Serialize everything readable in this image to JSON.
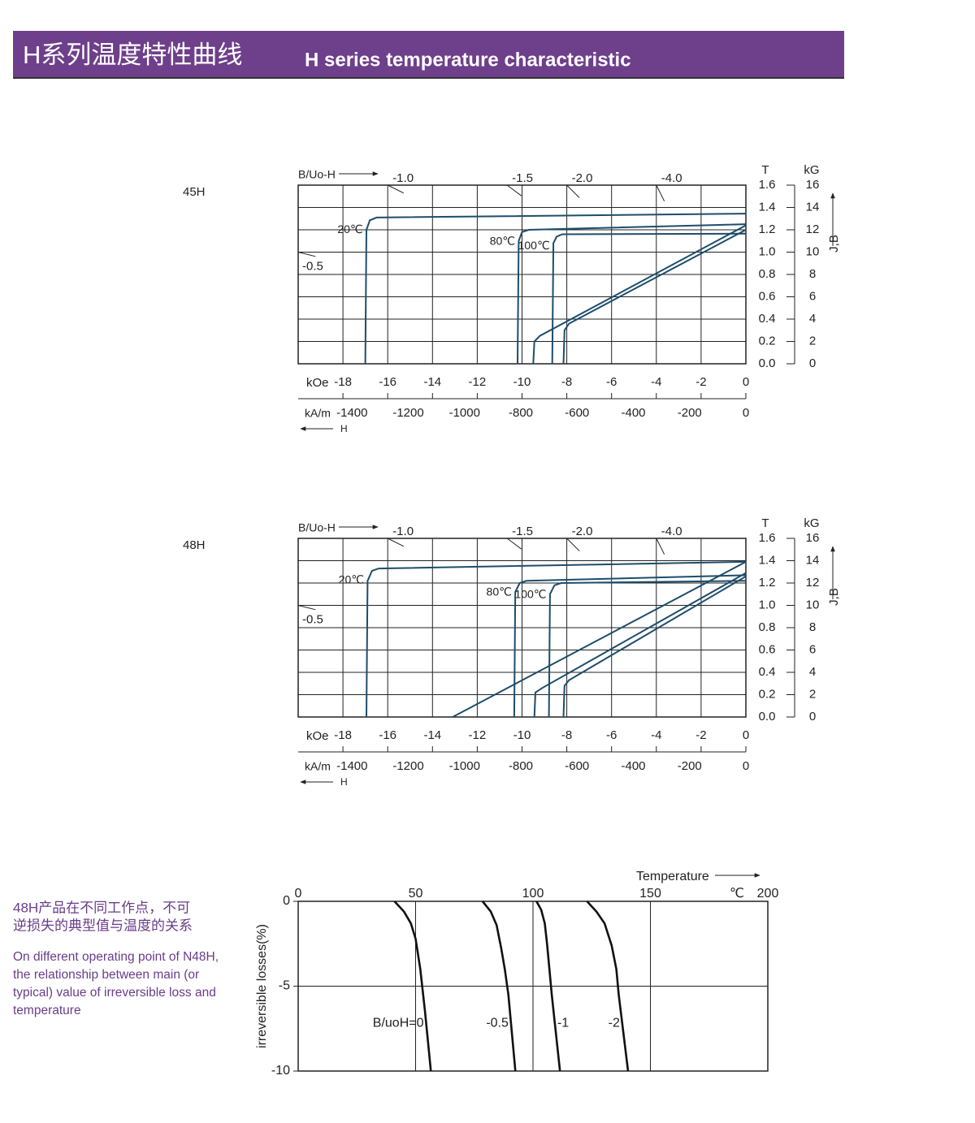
{
  "header": {
    "title_cn": "H系列温度特性曲线",
    "title_en": "H series temperature characteristic"
  },
  "side_note": {
    "cn_lines": [
      "48H产品在不同工作点，不可",
      "逆损失的典型值与温度的关系"
    ],
    "en_lines": [
      "On different operating point of N48H,",
      "the relationship between main (or",
      "typical) value of irreversible loss and",
      "temperature"
    ]
  },
  "chart_data": [
    {
      "type": "demag",
      "label": "45H",
      "top_label": "B/Uo-H",
      "xlabel": "kOe",
      "x2label": "kA/m",
      "x2_arrow_label": "H",
      "ylabel": "J,B",
      "y_unit": "T",
      "y2_unit": "kG",
      "xlim": [
        -20,
        0
      ],
      "xticks": [
        -18,
        -16,
        -14,
        -12,
        -10,
        -8,
        -6,
        -4,
        -2,
        0
      ],
      "x2lim": [
        -1591.5,
        0
      ],
      "x2ticks": [
        -1400,
        -1200,
        -1000,
        -800,
        -600,
        -400,
        -200,
        0
      ],
      "ylim": [
        0,
        1.6
      ],
      "yticks": [
        {
          "value": 0,
          "label": "0.0"
        },
        {
          "value": 0.2,
          "label": "0.2"
        },
        {
          "value": 0.4,
          "label": "0.4"
        },
        {
          "value": 0.6,
          "label": "0.6"
        },
        {
          "value": 0.8,
          "label": "0.8"
        },
        {
          "value": 1.0,
          "label": "1.0"
        },
        {
          "value": 1.2,
          "label": "1.2"
        },
        {
          "value": 1.4,
          "label": "1.4"
        },
        {
          "value": 1.6,
          "label": "1.6"
        }
      ],
      "y2lim": [
        0,
        16
      ],
      "y2ticks": [
        0,
        2,
        4,
        6,
        8,
        10,
        12,
        14,
        16
      ],
      "grid": true,
      "load_lines": [
        {
          "value": -1,
          "label": "-1.0"
        },
        {
          "value": -1.5,
          "label": "-1.5"
        },
        {
          "value": -2,
          "label": "-2.0"
        },
        {
          "value": -4,
          "label": "-4.0"
        },
        {
          "value": -0.5,
          "label": "-0.5"
        }
      ],
      "series": [
        {
          "name": "20℃",
          "color": "#1d4d6b",
          "x": [
            -17,
            -16.95,
            -16.8,
            -16.5,
            0
          ],
          "values": [
            0,
            1.2,
            1.285,
            1.31,
            1.345
          ]
        },
        {
          "name": "80℃",
          "color": "#1d4d6b",
          "x": [
            -10.2,
            -10.15,
            -10,
            -9.7,
            0
          ],
          "values": [
            0,
            1.1,
            1.18,
            1.2,
            1.25
          ]
        },
        {
          "name": "100℃",
          "color": "#1d4d6b",
          "x": [
            -8.65,
            -8.6,
            -8.45,
            -8.2,
            0
          ],
          "values": [
            0,
            1.08,
            1.14,
            1.16,
            1.165
          ]
        },
        {
          "color": "#1d4d6b",
          "x": [
            -9.5,
            -9.45,
            -9.2,
            0
          ],
          "values": [
            0,
            0.2,
            0.25,
            1.24
          ]
        },
        {
          "color": "#1d4d6b",
          "x": [
            -8.15,
            -8.1,
            -7.9,
            0
          ],
          "values": [
            0,
            0.3,
            0.36,
            1.2
          ]
        }
      ]
    },
    {
      "type": "demag",
      "label": "48H",
      "top_label": "B/Uo-H",
      "xlabel": "kOe",
      "x2label": "kA/m",
      "x2_arrow_label": "H",
      "ylabel": "J,B",
      "y_unit": "T",
      "y2_unit": "kG",
      "xlim": [
        -20,
        0
      ],
      "xticks": [
        -18,
        -16,
        -14,
        -12,
        -10,
        -8,
        -6,
        -4,
        -2,
        0
      ],
      "x2lim": [
        -1591.5,
        0
      ],
      "x2ticks": [
        -1400,
        -1200,
        -1000,
        -800,
        -600,
        -400,
        -200,
        0
      ],
      "ylim": [
        0,
        1.6
      ],
      "yticks": [
        {
          "value": 0,
          "label": "0.0"
        },
        {
          "value": 0.2,
          "label": "0.2"
        },
        {
          "value": 0.4,
          "label": "0.4"
        },
        {
          "value": 0.6,
          "label": "0.6"
        },
        {
          "value": 0.8,
          "label": "0.8"
        },
        {
          "value": 1.0,
          "label": "1.0"
        },
        {
          "value": 1.2,
          "label": "1.2"
        },
        {
          "value": 1.4,
          "label": "1.4"
        },
        {
          "value": 1.6,
          "label": "1.6"
        }
      ],
      "y2lim": [
        0,
        16
      ],
      "y2ticks": [
        0,
        2,
        4,
        6,
        8,
        10,
        12,
        14,
        16
      ],
      "grid": true,
      "load_lines": [
        {
          "value": -1,
          "label": "-1.0"
        },
        {
          "value": -1.5,
          "label": "-1.5"
        },
        {
          "value": -2,
          "label": "-2.0"
        },
        {
          "value": -4,
          "label": "-4.0"
        },
        {
          "value": -0.5,
          "label": "-0.5"
        }
      ],
      "series": [
        {
          "name": "20℃",
          "color": "#1d4d6b",
          "x": [
            -16.95,
            -16.9,
            -16.7,
            -16.4,
            0
          ],
          "values": [
            0,
            1.22,
            1.31,
            1.33,
            1.39
          ]
        },
        {
          "name": "80℃",
          "color": "#1d4d6b",
          "x": [
            -10.35,
            -10.3,
            -10.1,
            -9.8,
            0
          ],
          "values": [
            0,
            1.12,
            1.2,
            1.22,
            1.27
          ]
        },
        {
          "name": "100℃",
          "color": "#1d4d6b",
          "x": [
            -8.8,
            -8.75,
            -8.55,
            -8.25,
            0
          ],
          "values": [
            0,
            1.1,
            1.18,
            1.2,
            1.22
          ]
        },
        {
          "color": "#1d4d6b",
          "x": [
            -13.1,
            0
          ],
          "values": [
            0,
            1.39
          ]
        },
        {
          "color": "#1d4d6b",
          "x": [
            -9.45,
            -9.4,
            -9.1,
            0
          ],
          "values": [
            0,
            0.22,
            0.26,
            1.29
          ]
        },
        {
          "color": "#1d4d6b",
          "x": [
            -8.15,
            -8.1,
            -7.9,
            0
          ],
          "values": [
            0,
            0.28,
            0.33,
            1.26
          ]
        }
      ]
    },
    {
      "type": "line",
      "xlabel": "Temperature",
      "x_unit": "℃",
      "ylabel": "irreversible losses(%)",
      "xlim": [
        0,
        200
      ],
      "xticks": [
        0,
        50,
        100,
        150,
        200
      ],
      "ylim": [
        -10,
        0
      ],
      "yticks": [
        0,
        -5,
        -10
      ],
      "grid": true,
      "series": [
        {
          "name": "B/uoH=0",
          "color": "#111111",
          "x": [
            41,
            45,
            48,
            50,
            52,
            54,
            56.5
          ],
          "values": [
            0,
            -0.6,
            -1.3,
            -2.2,
            -4,
            -6.5,
            -10
          ]
        },
        {
          "name": "-0.5",
          "color": "#111111",
          "x": [
            78.5,
            82,
            84.5,
            86.5,
            88,
            89.5,
            92.5
          ],
          "values": [
            0,
            -0.6,
            -1.4,
            -2.8,
            -4,
            -5.5,
            -10
          ]
        },
        {
          "name": "-1",
          "color": "#111111",
          "x": [
            101.5,
            103.5,
            105,
            106,
            107,
            108,
            111.5
          ],
          "values": [
            0,
            -0.5,
            -1.3,
            -2.5,
            -4,
            -5.5,
            -10
          ]
        },
        {
          "name": "-2",
          "color": "#111111",
          "x": [
            123,
            127,
            130.5,
            133.5,
            135.5,
            136.5,
            140.5
          ],
          "values": [
            0,
            -0.6,
            -1.3,
            -2.6,
            -4,
            -5.5,
            -10
          ]
        }
      ]
    }
  ]
}
